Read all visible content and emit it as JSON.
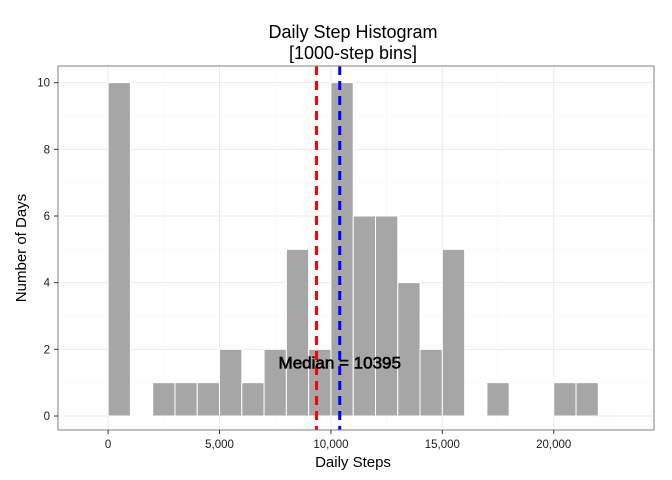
{
  "chart_data": {
    "type": "bar",
    "title_line1": "Daily Step Histogram",
    "title_line2": "[1000-step bins]",
    "xlabel": "Daily Steps",
    "ylabel": "Number of Days",
    "bin_width": 1000,
    "x": [
      0,
      1000,
      2000,
      3000,
      4000,
      5000,
      6000,
      7000,
      8000,
      9000,
      10000,
      11000,
      12000,
      13000,
      14000,
      15000,
      16000,
      17000,
      18000,
      19000,
      20000,
      21000
    ],
    "values": [
      10,
      0,
      1,
      1,
      1,
      2,
      1,
      2,
      5,
      2,
      10,
      6,
      6,
      4,
      2,
      5,
      0,
      1,
      0,
      0,
      1,
      1
    ],
    "xlim": [
      -2250,
      24500
    ],
    "ylim": [
      -0.42,
      10.5
    ],
    "x_ticks": [
      0,
      5000,
      10000,
      15000,
      20000
    ],
    "x_tick_labels": [
      "0",
      "5,000",
      "10,000",
      "15,000",
      "20,000"
    ],
    "y_ticks": [
      0,
      2,
      4,
      6,
      8,
      10
    ],
    "y_tick_labels": [
      "0",
      "2",
      "4",
      "6",
      "8",
      "10"
    ],
    "grid": true,
    "reference_lines": [
      {
        "x": 9354,
        "color": "#ff0000",
        "style": "dashed"
      },
      {
        "x": 10395,
        "color": "#0000ff",
        "style": "dashed"
      }
    ],
    "annotation": {
      "text": "Median = 10395",
      "x": 10395,
      "y": 1.6
    },
    "colors": {
      "bar_fill": "#a6a6a6",
      "bar_stroke": "#ffffff",
      "panel_border": "#7f7f7f",
      "grid_major": "#ebebeb",
      "grid_minor": "#f5f5f5"
    }
  }
}
